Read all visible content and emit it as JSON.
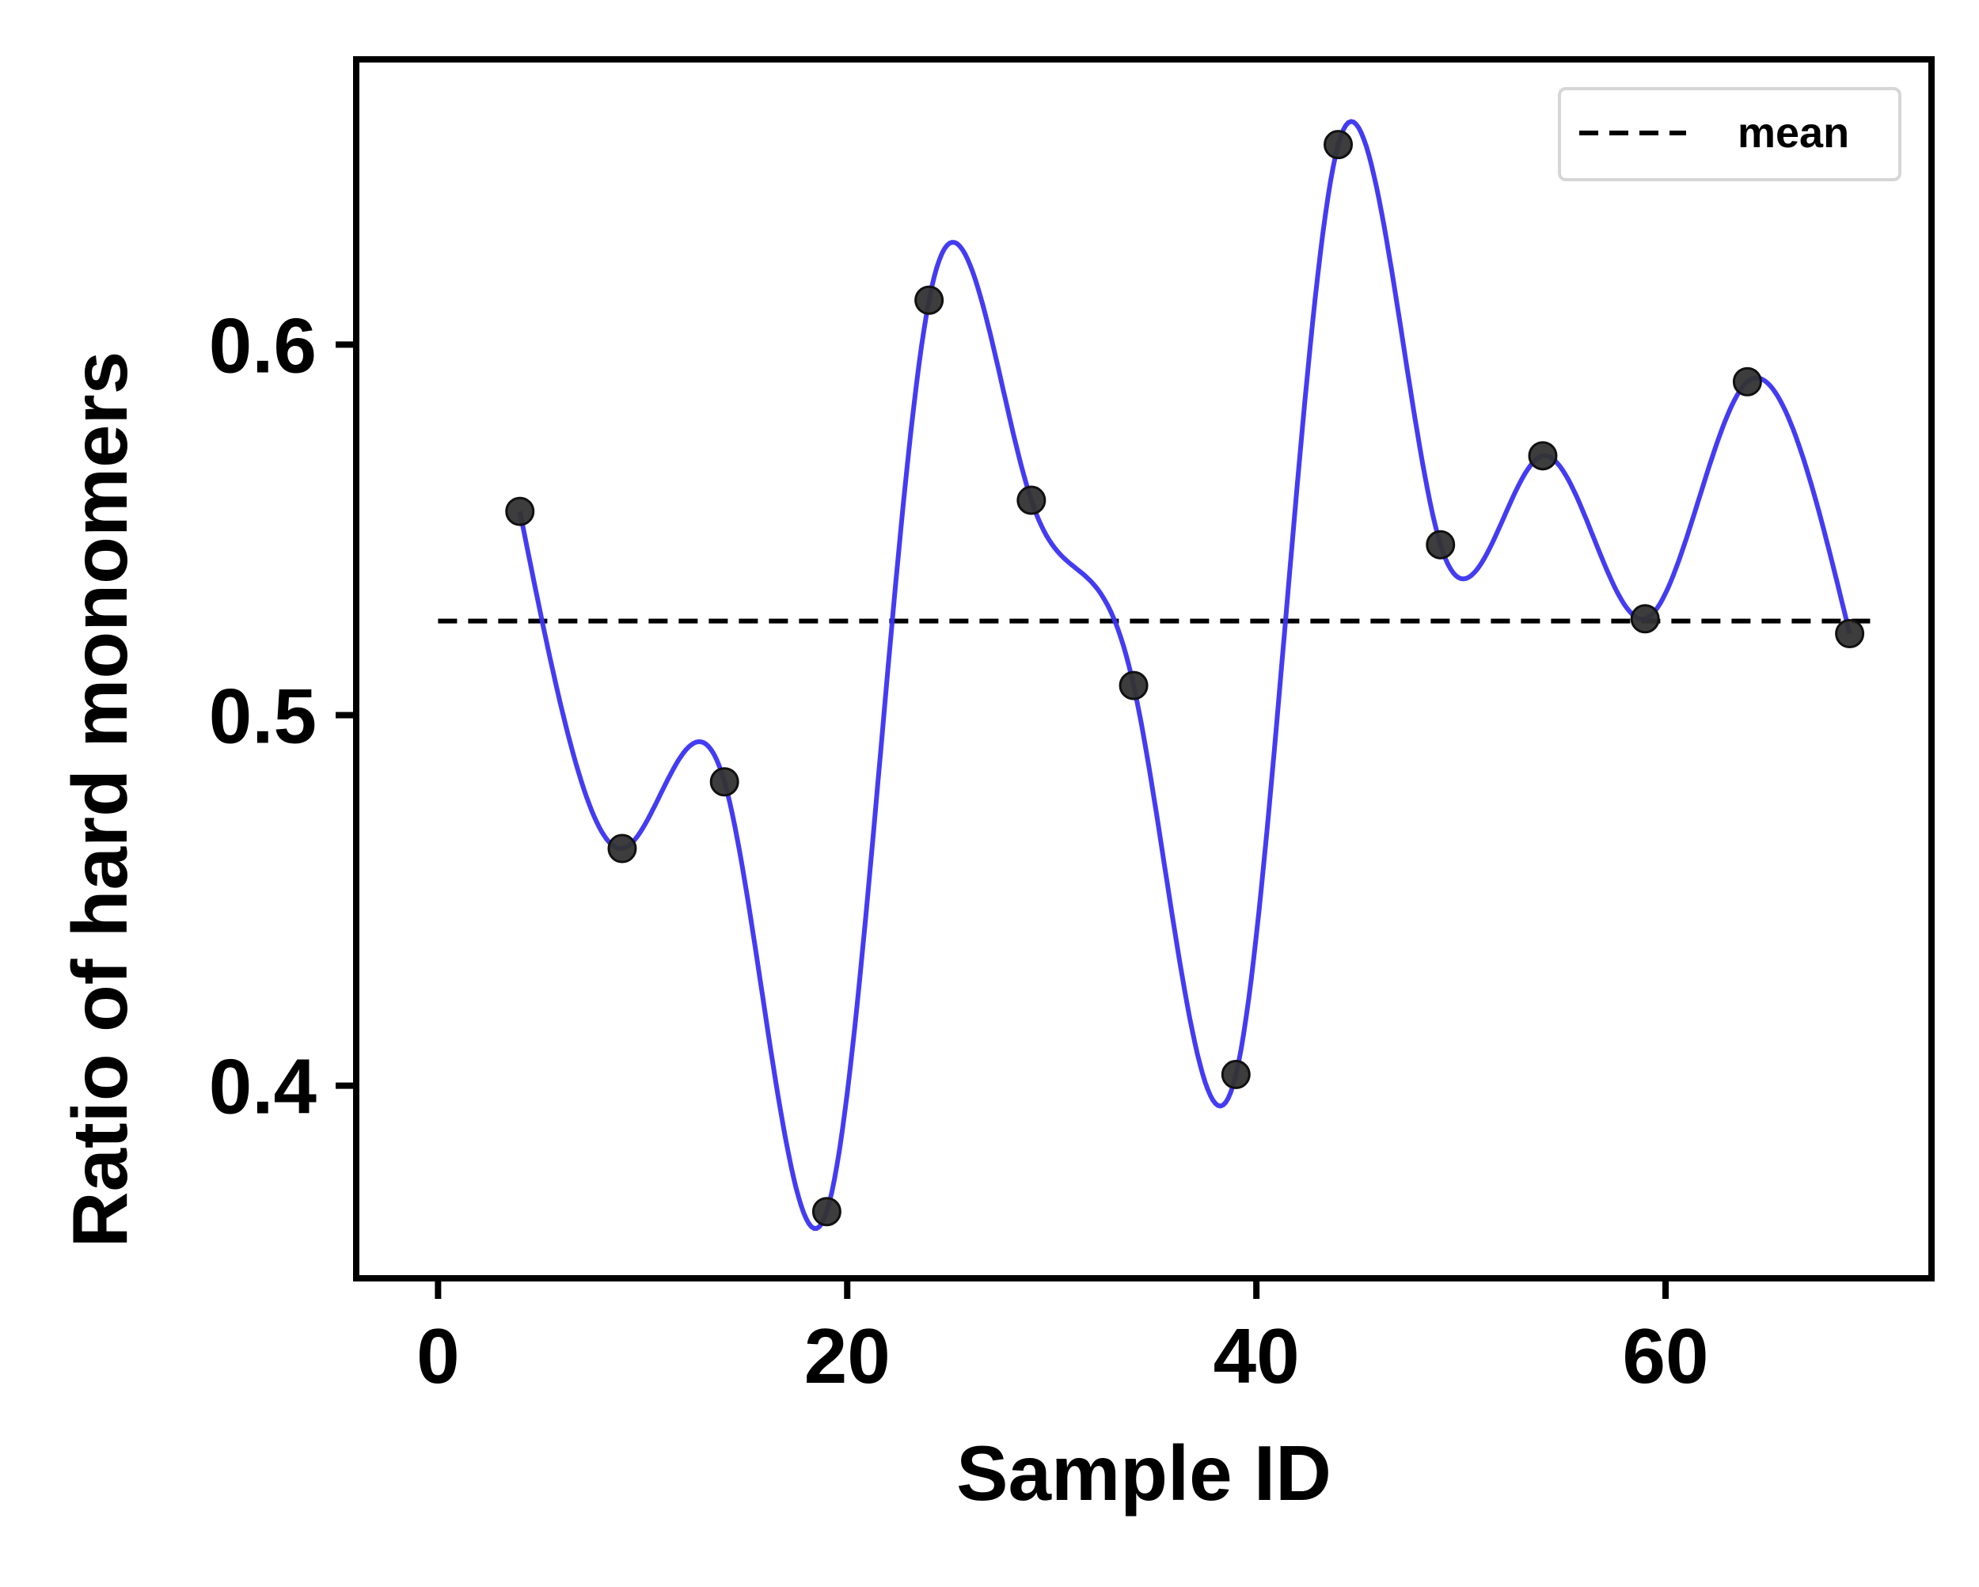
{
  "chart_data": {
    "type": "line",
    "title": "",
    "xlabel": "Sample ID",
    "ylabel": "Ratio of hard monomers",
    "xlim": [
      -4,
      73
    ],
    "ylim": [
      0.348,
      0.677
    ],
    "x_ticks": [
      0,
      20,
      40,
      60
    ],
    "y_ticks": [
      0.4,
      0.5,
      0.6
    ],
    "x_tick_labels": [
      "0",
      "20",
      "40",
      "60"
    ],
    "y_tick_labels": [
      "0.4",
      "0.5",
      "0.6"
    ],
    "grid": false,
    "legend_position": "top-right",
    "series": [
      {
        "kind": "scatter",
        "color": "#333333",
        "x": [
          4,
          9,
          14,
          19,
          24,
          29,
          34,
          39,
          44,
          49,
          54,
          59,
          64,
          69
        ],
        "y": [
          0.555,
          0.464,
          0.482,
          0.366,
          0.612,
          0.558,
          0.508,
          0.403,
          0.654,
          0.546,
          0.57,
          0.526,
          0.59,
          0.522
        ]
      },
      {
        "kind": "smooth-line",
        "color": "#3a32f0"
      },
      {
        "kind": "mean-line",
        "name": "mean",
        "color": "#000000",
        "value": 0.5254,
        "x_range": [
          0,
          70
        ]
      }
    ]
  }
}
